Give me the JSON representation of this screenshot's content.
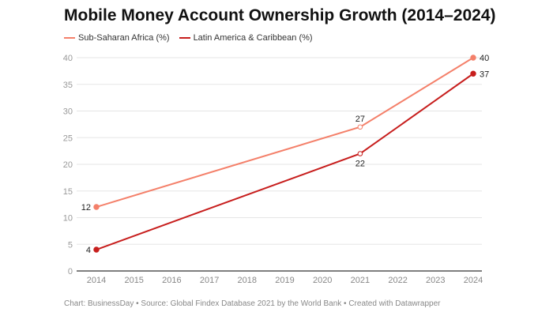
{
  "chart_data": {
    "type": "line",
    "title": "Mobile Money Account Ownership Growth (2014–2024)",
    "x": [
      2014,
      2015,
      2016,
      2017,
      2018,
      2019,
      2020,
      2021,
      2022,
      2023,
      2024
    ],
    "xlim": [
      2014,
      2024
    ],
    "ylim": [
      0,
      40
    ],
    "yticks": [
      0,
      5,
      10,
      15,
      20,
      25,
      30,
      35,
      40
    ],
    "grid": true,
    "legend_position": "top-left",
    "series": [
      {
        "name": "Sub-Saharan Africa (%)",
        "color": "#f4806a",
        "points": [
          [
            2014,
            12
          ],
          [
            2021,
            27
          ],
          [
            2024,
            40
          ]
        ],
        "hollow_years": [
          2021
        ]
      },
      {
        "name": "Latin America & Caribbean (%)",
        "color": "#c71e1d",
        "points": [
          [
            2014,
            4
          ],
          [
            2021,
            22
          ],
          [
            2024,
            37
          ]
        ],
        "hollow_years": [
          2021
        ]
      }
    ]
  },
  "footer": "Chart: BusinessDay • Source: Global Findex Database 2021 by the World Bank • Created with Datawrapper"
}
